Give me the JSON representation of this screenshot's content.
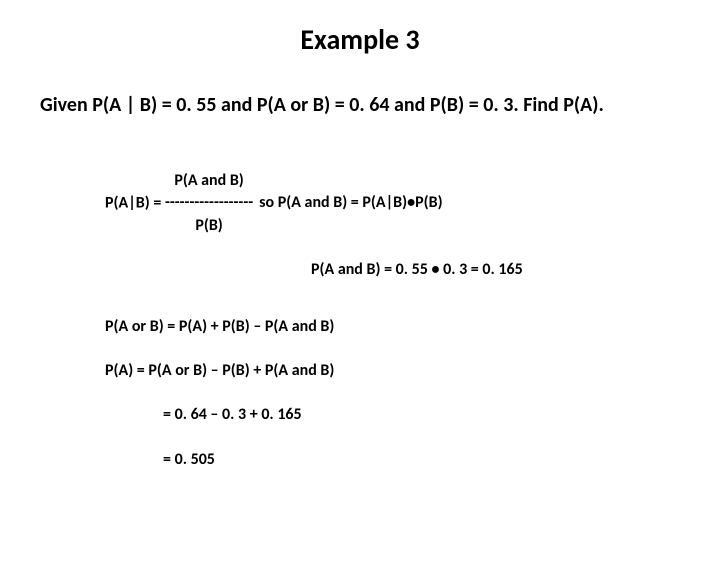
{
  "title": "Example 3",
  "problem": "Given P(A | B) = 0. 55 and P(A or B) = 0. 64 and P(B) = 0. 3. Find P(A).",
  "formula": {
    "left_label": "P(A|B) = ",
    "numerator": "P(A and B)",
    "dashes": "------------------",
    "denominator": "P(B)",
    "so_text": "so P(A and B) = P(A|B)•P(B)"
  },
  "calc": "P(A and B) = 0. 55 • 0. 3 = 0. 165",
  "union": "P(A or B) = P(A) + P(B) – P(A and B)",
  "pa": "P(A) = P(A or B) – P(B) + P(A and B)",
  "eq1": "=  0. 64 – 0. 3 + 0. 165",
  "eq2": "=  0. 505",
  "colors": {
    "background": "#ffffff",
    "text": "#000000"
  },
  "fontsize": {
    "title": 28,
    "problem": 20,
    "work": 16
  }
}
